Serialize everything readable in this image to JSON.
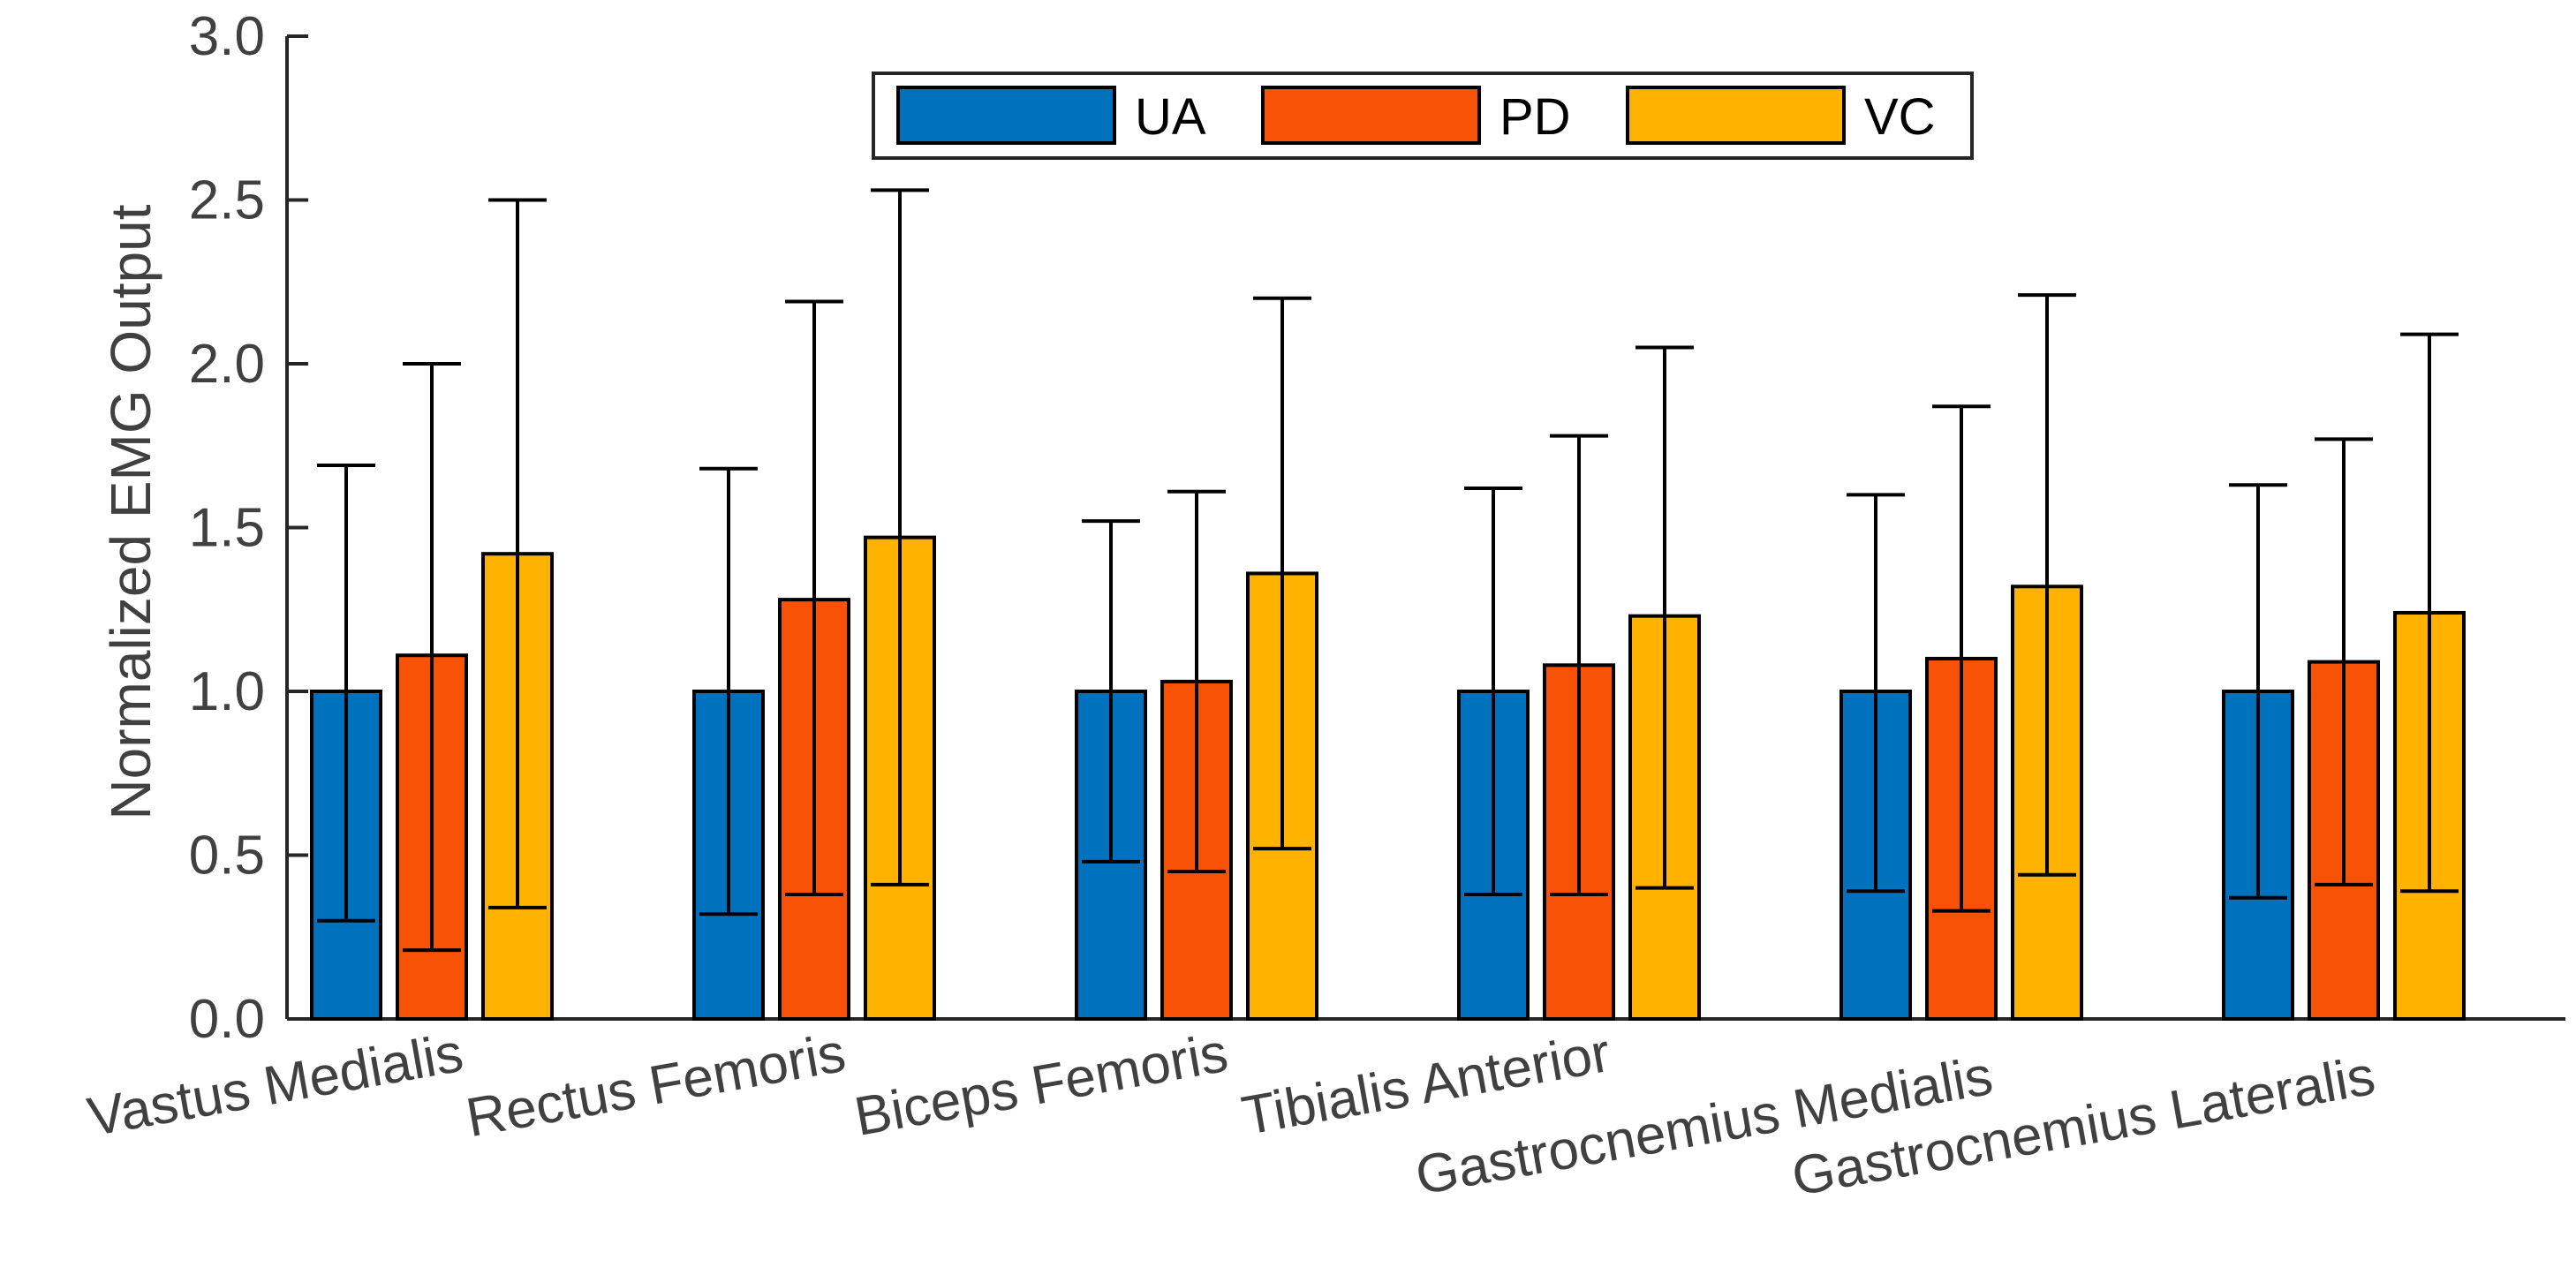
{
  "chart_data": {
    "type": "bar",
    "title": "",
    "xlabel": "",
    "ylabel": "Normalized EMG Output",
    "ylim": [
      0,
      3
    ],
    "yticks": [
      "0.0",
      "0.5",
      "1.0",
      "1.5",
      "2.0",
      "2.5",
      "3.0"
    ],
    "categories": [
      "Vastus Medialis",
      "Rectus Femoris",
      "Biceps Femoris",
      "Tibialis Anterior",
      "Gastrocnemius Medialis",
      "Gastrocnemius Lateralis"
    ],
    "series": [
      {
        "name": "UA",
        "color": "#0072BD",
        "values": [
          1.0,
          1.0,
          1.0,
          1.0,
          1.0,
          1.0
        ],
        "err_low": [
          0.3,
          0.32,
          0.48,
          0.38,
          0.39,
          0.37
        ],
        "err_high": [
          1.69,
          1.68,
          1.52,
          1.62,
          1.6,
          1.63
        ]
      },
      {
        "name": "PD",
        "color": "#F75206",
        "values": [
          1.11,
          1.28,
          1.03,
          1.08,
          1.1,
          1.09
        ],
        "err_low": [
          0.21,
          0.38,
          0.45,
          0.38,
          0.33,
          0.41
        ],
        "err_high": [
          2.0,
          2.19,
          1.61,
          1.78,
          1.87,
          1.77
        ]
      },
      {
        "name": "VC",
        "color": "#FFB300",
        "values": [
          1.42,
          1.47,
          1.36,
          1.23,
          1.32,
          1.24
        ],
        "err_low": [
          0.34,
          0.41,
          0.52,
          0.4,
          0.44,
          0.39
        ],
        "err_high": [
          2.5,
          2.53,
          2.2,
          2.05,
          2.21,
          2.09
        ]
      }
    ],
    "legend": {
      "position": "top",
      "orientation": "horizontal"
    },
    "grid": false
  }
}
